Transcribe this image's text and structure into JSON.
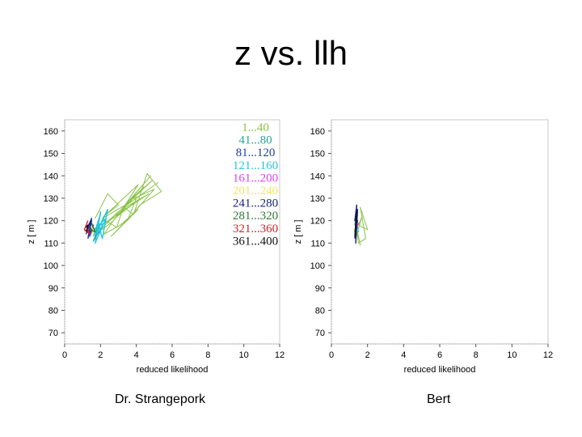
{
  "slide": {
    "title": "z vs. llh",
    "captions": [
      "Dr. Strangepork",
      "Bert"
    ]
  },
  "colors": {
    "series": [
      "#8bc34a",
      "#26a69a",
      "#1e40af",
      "#26c6da",
      "#e040fb",
      "#f5e663",
      "#1a237e",
      "#2e7d32",
      "#c62828",
      "#111111"
    ]
  },
  "chart_data": [
    {
      "type": "line",
      "title": "",
      "xlabel": "reduced likelihood",
      "ylabel": "z [ m ]",
      "xlim": [
        0,
        12
      ],
      "ylim": [
        65,
        165
      ],
      "xticks": [
        0,
        2,
        4,
        6,
        8,
        10,
        12
      ],
      "yticks": [
        70,
        80,
        90,
        100,
        110,
        120,
        130,
        140,
        150,
        160
      ],
      "legend_position": "top-right",
      "series": [
        {
          "name": "1...40",
          "x": [
            1.7,
            2.4,
            3.0,
            2.2,
            4.1,
            3.3,
            4.9,
            3.6,
            5.0,
            3.9,
            4.6,
            5.4,
            4.2,
            3.5,
            4.0,
            5.2,
            3.3,
            3.8,
            2.6,
            4.1,
            3.1,
            2.2,
            2.8,
            3.9,
            2.5,
            1.9,
            2.6,
            3.4,
            4.7,
            3.2,
            2.9,
            2.1,
            3.6,
            4.4,
            3.0,
            2.3,
            3.3,
            4.8,
            3.6,
            2.7
          ],
          "y": [
            121,
            132,
            127,
            122,
            136,
            126,
            138,
            129,
            134,
            124,
            141,
            133,
            127,
            120,
            130,
            137,
            126,
            123,
            113,
            125,
            118,
            114,
            121,
            128,
            120,
            115,
            119,
            126,
            132,
            124,
            117,
            121,
            128,
            135,
            123,
            119,
            126,
            140,
            129,
            121
          ]
        },
        {
          "name": "41...80",
          "x": [
            1.9,
            1.7,
            2.2,
            1.6,
            2.0
          ],
          "y": [
            120,
            113,
            122,
            111,
            116
          ]
        },
        {
          "name": "81...120",
          "x": [
            1.3,
            1.5,
            1.4,
            1.6,
            1.5
          ],
          "y": [
            116,
            120,
            113,
            118,
            114
          ]
        },
        {
          "name": "121...160",
          "x": [
            1.6,
            2.0,
            1.8,
            2.4,
            2.1,
            1.9,
            2.3,
            1.7,
            2.0,
            1.8,
            2.2,
            1.6
          ],
          "y": [
            113,
            123,
            115,
            125,
            112,
            118,
            121,
            110,
            124,
            114,
            119,
            116
          ]
        },
        {
          "name": "161...200",
          "x": [
            1.2,
            1.4,
            1.3
          ],
          "y": [
            117,
            119,
            115
          ]
        },
        {
          "name": "201...240",
          "x": [
            1.4,
            1.6,
            1.5
          ],
          "y": [
            118,
            116,
            114
          ]
        },
        {
          "name": "241...280",
          "x": [
            1.2,
            1.4,
            1.3,
            1.5,
            1.3
          ],
          "y": [
            114,
            119,
            117,
            121,
            112
          ]
        },
        {
          "name": "281...320",
          "x": [
            1.4,
            1.7,
            1.5
          ],
          "y": [
            116,
            115,
            119
          ]
        },
        {
          "name": "321...360",
          "x": [
            1.3,
            1.1,
            1.4,
            1.2
          ],
          "y": [
            120,
            116,
            114,
            118
          ]
        },
        {
          "name": "361...400",
          "x": [
            1.2,
            1.3,
            1.2
          ],
          "y": [
            115,
            118,
            117
          ]
        }
      ]
    },
    {
      "type": "line",
      "title": "",
      "xlabel": "reduced likelihood",
      "ylabel": "z [ m ]",
      "xlim": [
        0,
        12
      ],
      "ylim": [
        65,
        165
      ],
      "xticks": [
        0,
        2,
        4,
        6,
        8,
        10,
        12
      ],
      "yticks": [
        70,
        80,
        90,
        100,
        110,
        120,
        130,
        140,
        150,
        160
      ],
      "series": [
        {
          "name": "1...40",
          "x": [
            1.4,
            1.7,
            1.5,
            2.0,
            1.6,
            1.9,
            1.5,
            1.3,
            1.6,
            1.4
          ],
          "y": [
            114,
            122,
            118,
            116,
            126,
            112,
            110,
            120,
            109,
            117
          ]
        },
        {
          "name": "41...80",
          "x": [
            1.3,
            1.4,
            1.3
          ],
          "y": [
            118,
            122,
            115
          ]
        },
        {
          "name": "81...120",
          "x": [
            1.35,
            1.45,
            1.3
          ],
          "y": [
            116,
            120,
            113
          ]
        },
        {
          "name": "121...160",
          "x": [
            1.3,
            1.5,
            1.35
          ],
          "y": [
            119,
            115,
            121
          ]
        },
        {
          "name": "161...200",
          "x": [
            1.4,
            1.5
          ],
          "y": [
            117,
            119
          ]
        },
        {
          "name": "201...240",
          "x": [
            1.3,
            1.45
          ],
          "y": [
            114,
            116
          ]
        },
        {
          "name": "241...280",
          "x": [
            1.3,
            1.4,
            1.3,
            1.45,
            1.35,
            1.4
          ],
          "y": [
            112,
            127,
            120,
            125,
            110,
            122
          ]
        },
        {
          "name": "281...320",
          "x": [
            1.3,
            1.4,
            1.35
          ],
          "y": [
            115,
            121,
            118
          ]
        },
        {
          "name": "321...360",
          "x": [
            1.35,
            1.4
          ],
          "y": [
            117,
            119
          ]
        },
        {
          "name": "361...400",
          "x": [
            1.3,
            1.4,
            1.35,
            1.4
          ],
          "y": [
            113,
            124,
            117,
            121
          ]
        }
      ]
    }
  ]
}
